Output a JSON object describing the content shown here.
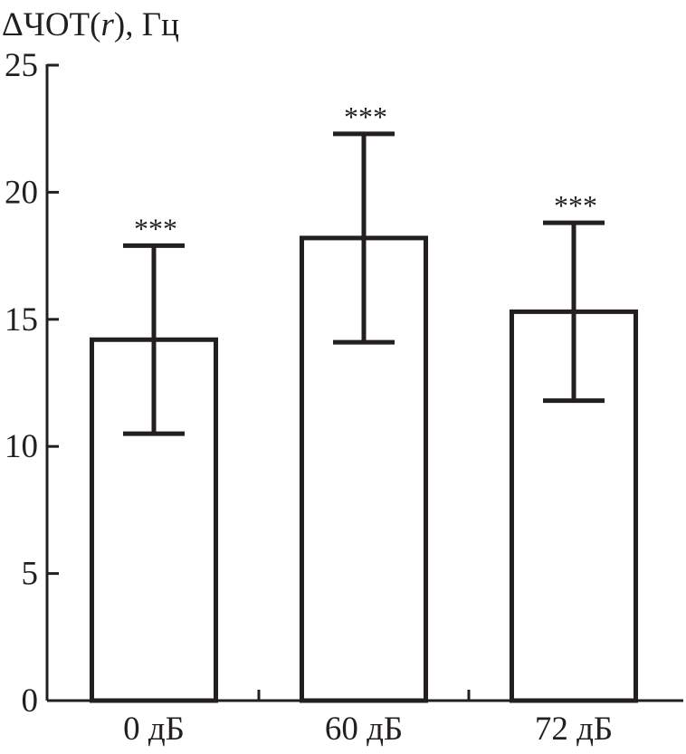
{
  "chart_data": {
    "type": "bar",
    "ylabel": {
      "prefix": "ΔЧОТ(",
      "var": "r",
      "suffix": "), Гц"
    },
    "categories": [
      "0 дБ",
      "60 дБ",
      "72 дБ"
    ],
    "values": [
      14.2,
      18.2,
      15.3
    ],
    "error_upper": [
      17.9,
      22.3,
      18.8
    ],
    "error_lower": [
      10.5,
      14.1,
      11.8
    ],
    "annotations": [
      "***",
      "***",
      "***"
    ],
    "yticks": [
      "0",
      "5",
      "10",
      "15",
      "20",
      "25"
    ],
    "ylim": [
      0,
      25
    ],
    "grid": false,
    "colors": {
      "axis": "#231f20",
      "bar_fill": "#ffffff"
    }
  }
}
